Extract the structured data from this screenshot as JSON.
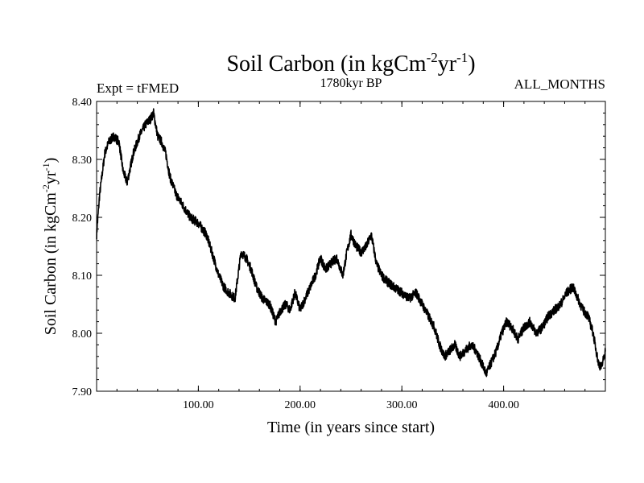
{
  "chart_data": {
    "type": "line",
    "title": {
      "main": "Soil Carbon (in kgCm",
      "sup1": "-2",
      "mid": "yr",
      "sup2": "-1",
      "end": ")"
    },
    "subtitle_left": "Expt = tFMED",
    "subtitle_center": "1780kyr BP",
    "subtitle_right": "ALL_MONTHS",
    "xlabel": "Time (in years since start)",
    "ylabel": {
      "main": "Soil Carbon (in kgCm",
      "sup1": "-2",
      "mid": "yr",
      "sup2": "-1",
      "end": ")"
    },
    "xlim": [
      0,
      500
    ],
    "ylim": [
      7.9,
      8.4
    ],
    "x_ticks": [
      {
        "value": 100,
        "label": "100.00"
      },
      {
        "value": 200,
        "label": "200.00"
      },
      {
        "value": 300,
        "label": "300.00"
      },
      {
        "value": 400,
        "label": "400.00"
      }
    ],
    "y_ticks": [
      {
        "value": 7.9,
        "label": "7.90"
      },
      {
        "value": 8.0,
        "label": "8.00"
      },
      {
        "value": 8.1,
        "label": "8.10"
      },
      {
        "value": 8.2,
        "label": "8.20"
      },
      {
        "value": 8.3,
        "label": "8.30"
      },
      {
        "value": 8.4,
        "label": "8.40"
      }
    ],
    "series": [
      {
        "name": "Soil Carbon",
        "color": "#000000",
        "noise_amplitude": 0.008,
        "x": [
          0,
          3,
          8,
          12,
          17,
          22,
          26,
          30,
          36,
          42,
          48,
          53,
          56,
          60,
          64,
          68,
          72,
          78,
          85,
          92,
          100,
          108,
          115,
          120,
          125,
          130,
          136,
          142,
          147,
          152,
          157,
          163,
          170,
          176,
          181,
          186,
          190,
          195,
          200,
          205,
          210,
          215,
          220,
          225,
          230,
          236,
          242,
          246,
          250,
          255,
          260,
          265,
          270,
          275,
          280,
          285,
          292,
          300,
          307,
          314,
          320,
          326,
          332,
          337,
          342,
          347,
          352,
          357,
          362,
          368,
          373,
          378,
          383,
          388,
          393,
          398,
          403,
          408,
          414,
          420,
          426,
          432,
          438,
          444,
          450,
          456,
          462,
          468,
          473,
          478,
          483,
          488,
          493,
          496,
          500
        ],
        "y": [
          8.17,
          8.24,
          8.31,
          8.33,
          8.34,
          8.33,
          8.28,
          8.26,
          8.31,
          8.34,
          8.36,
          8.37,
          8.38,
          8.34,
          8.33,
          8.31,
          8.27,
          8.24,
          8.22,
          8.2,
          8.19,
          8.17,
          8.13,
          8.1,
          8.08,
          8.07,
          8.06,
          8.14,
          8.13,
          8.11,
          8.08,
          8.06,
          8.05,
          8.02,
          8.04,
          8.05,
          8.04,
          8.07,
          8.04,
          8.06,
          8.08,
          8.1,
          8.13,
          8.11,
          8.12,
          8.13,
          8.1,
          8.14,
          8.17,
          8.15,
          8.14,
          8.15,
          8.17,
          8.12,
          8.1,
          8.09,
          8.08,
          8.07,
          8.06,
          8.07,
          8.05,
          8.03,
          8.01,
          7.98,
          7.96,
          7.97,
          7.98,
          7.96,
          7.97,
          7.98,
          7.97,
          7.95,
          7.93,
          7.95,
          7.97,
          8.0,
          8.02,
          8.01,
          7.99,
          8.01,
          8.02,
          8.0,
          8.01,
          8.03,
          8.04,
          8.05,
          8.07,
          8.08,
          8.06,
          8.04,
          8.03,
          8.0,
          7.95,
          7.94,
          7.97
        ]
      }
    ]
  }
}
